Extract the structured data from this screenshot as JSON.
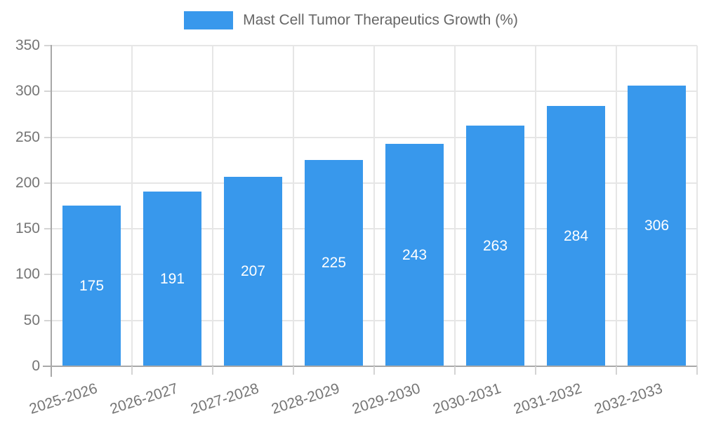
{
  "chart_data": {
    "type": "bar",
    "title": "Mast Cell Tumor Therapeutics Growth (%)",
    "categories": [
      "2025-2026",
      "2026-2027",
      "2027-2028",
      "2028-2029",
      "2029-2030",
      "2030-2031",
      "2031-2032",
      "2032-2033"
    ],
    "values": [
      175,
      191,
      207,
      225,
      243,
      263,
      284,
      306
    ],
    "xlabel": "",
    "ylabel": "",
    "ylim": [
      0,
      350
    ],
    "yticks": [
      0,
      50,
      100,
      150,
      200,
      250,
      300,
      350
    ],
    "grid": true,
    "legend_position": "top",
    "bar_color": "#3898ec",
    "value_label_color": "#ffffff"
  },
  "colors": {
    "bar": "#3898ec",
    "grid": "#e6e6e6",
    "axis": "#a8a8a8",
    "tick": "#d4d4d4",
    "tick_text": "#757575",
    "legend_text": "#666666",
    "value_text": "#ffffff",
    "background": "#ffffff"
  }
}
